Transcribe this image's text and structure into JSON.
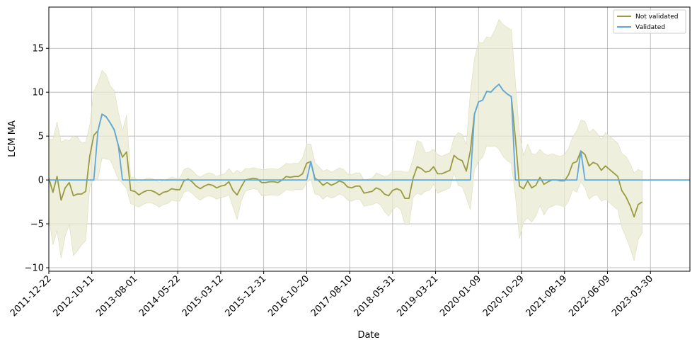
{
  "chart_data": {
    "type": "line",
    "xlabel": "Date",
    "ylabel": "LCM MA",
    "ylim": [
      -10.4,
      19.7
    ],
    "yticks": [
      -10,
      -5,
      0,
      5,
      10,
      15
    ],
    "grid": true,
    "legend_placement": "top-right",
    "x_tick_labels": [
      "2011-12-22",
      "2012-10-11",
      "2013-08-01",
      "2014-05-22",
      "2015-03-12",
      "2015-12-31",
      "2016-10-20",
      "2017-08-10",
      "2018-05-31",
      "2019-03-21",
      "2020-01-09",
      "2020-10-29",
      "2021-08-19",
      "2022-06-09",
      "2023-03-30"
    ],
    "x_range": [
      "2011-12-22",
      "2023-12-25"
    ],
    "band_color": "#e9e9d3",
    "series": [
      {
        "name": "Not validated",
        "color": "#9a9a3f",
        "points": [
          [
            "2011-12-22",
            0.2
          ],
          [
            "2012-01-19",
            -1.4
          ],
          [
            "2012-02-16",
            0.4
          ],
          [
            "2012-03-15",
            -2.3
          ],
          [
            "2012-04-12",
            -0.9
          ],
          [
            "2012-05-10",
            -0.3
          ],
          [
            "2012-06-07",
            -1.8
          ],
          [
            "2012-07-05",
            -1.6
          ],
          [
            "2012-08-02",
            -1.6
          ],
          [
            "2012-08-30",
            -1.3
          ],
          [
            "2012-09-27",
            2.7
          ],
          [
            "2012-10-25",
            5.1
          ],
          [
            "2012-11-22",
            5.6
          ],
          [
            "2012-12-20",
            7.5
          ],
          [
            "2013-01-17",
            7.2
          ],
          [
            "2013-02-14",
            6.5
          ],
          [
            "2013-03-14",
            5.7
          ],
          [
            "2013-04-11",
            3.9
          ],
          [
            "2013-05-09",
            2.6
          ],
          [
            "2013-06-06",
            3.2
          ],
          [
            "2013-07-04",
            -1.2
          ],
          [
            "2013-08-01",
            -1.3
          ],
          [
            "2013-08-29",
            -1.7
          ],
          [
            "2013-09-26",
            -1.4
          ],
          [
            "2013-10-24",
            -1.2
          ],
          [
            "2013-11-21",
            -1.2
          ],
          [
            "2013-12-19",
            -1.4
          ],
          [
            "2014-01-16",
            -1.7
          ],
          [
            "2014-02-13",
            -1.4
          ],
          [
            "2014-03-13",
            -1.3
          ],
          [
            "2014-04-10",
            -1.0
          ],
          [
            "2014-05-08",
            -1.1
          ],
          [
            "2014-06-05",
            -1.1
          ],
          [
            "2014-07-03",
            -0.1
          ],
          [
            "2014-07-31",
            0.1
          ],
          [
            "2014-08-28",
            -0.2
          ],
          [
            "2014-09-25",
            -0.7
          ],
          [
            "2014-10-23",
            -1.0
          ],
          [
            "2014-11-20",
            -0.7
          ],
          [
            "2014-12-18",
            -0.5
          ],
          [
            "2015-01-15",
            -0.6
          ],
          [
            "2015-02-12",
            -0.9
          ],
          [
            "2015-03-12",
            -0.7
          ],
          [
            "2015-04-09",
            -0.6
          ],
          [
            "2015-05-07",
            -0.2
          ],
          [
            "2015-06-04",
            -1.2
          ],
          [
            "2015-07-02",
            -1.7
          ],
          [
            "2015-07-30",
            -0.8
          ],
          [
            "2015-08-27",
            0.0
          ],
          [
            "2015-09-24",
            0.1
          ],
          [
            "2015-10-22",
            0.2
          ],
          [
            "2015-11-19",
            0.1
          ],
          [
            "2015-12-17",
            -0.3
          ],
          [
            "2016-01-14",
            -0.3
          ],
          [
            "2016-02-11",
            -0.2
          ],
          [
            "2016-03-10",
            -0.2
          ],
          [
            "2016-04-07",
            -0.3
          ],
          [
            "2016-05-05",
            0.0
          ],
          [
            "2016-06-02",
            0.4
          ],
          [
            "2016-06-30",
            0.3
          ],
          [
            "2016-07-28",
            0.4
          ],
          [
            "2016-08-25",
            0.4
          ],
          [
            "2016-09-22",
            0.7
          ],
          [
            "2016-10-20",
            1.9
          ],
          [
            "2016-11-17",
            2.1
          ],
          [
            "2016-12-15",
            0.2
          ],
          [
            "2017-01-12",
            -0.1
          ],
          [
            "2017-02-09",
            -0.6
          ],
          [
            "2017-03-09",
            -0.3
          ],
          [
            "2017-04-06",
            -0.6
          ],
          [
            "2017-05-04",
            -0.4
          ],
          [
            "2017-06-01",
            -0.1
          ],
          [
            "2017-06-29",
            -0.3
          ],
          [
            "2017-07-27",
            -0.8
          ],
          [
            "2017-08-24",
            -0.9
          ],
          [
            "2017-09-21",
            -0.7
          ],
          [
            "2017-10-19",
            -0.7
          ],
          [
            "2017-11-16",
            -1.5
          ],
          [
            "2017-12-14",
            -1.4
          ],
          [
            "2018-01-11",
            -1.3
          ],
          [
            "2018-02-08",
            -0.9
          ],
          [
            "2018-03-08",
            -1.1
          ],
          [
            "2018-04-05",
            -1.6
          ],
          [
            "2018-05-03",
            -1.8
          ],
          [
            "2018-05-31",
            -1.2
          ],
          [
            "2018-06-28",
            -1.0
          ],
          [
            "2018-07-26",
            -1.2
          ],
          [
            "2018-08-23",
            -2.1
          ],
          [
            "2018-09-20",
            -2.1
          ],
          [
            "2018-10-18",
            0.2
          ],
          [
            "2018-11-15",
            1.5
          ],
          [
            "2018-12-13",
            1.3
          ],
          [
            "2019-01-10",
            0.9
          ],
          [
            "2019-02-07",
            1.0
          ],
          [
            "2019-03-07",
            1.5
          ],
          [
            "2019-04-04",
            0.7
          ],
          [
            "2019-05-02",
            0.7
          ],
          [
            "2019-05-30",
            0.9
          ],
          [
            "2019-06-27",
            1.1
          ],
          [
            "2019-07-25",
            2.8
          ],
          [
            "2019-08-22",
            2.4
          ],
          [
            "2019-09-19",
            2.2
          ],
          [
            "2019-10-17",
            1.0
          ],
          [
            "2019-11-14",
            3.3
          ],
          [
            "2019-12-12",
            7.5
          ],
          [
            "2020-01-09",
            8.9
          ],
          [
            "2020-02-06",
            9.1
          ],
          [
            "2020-03-05",
            10.1
          ],
          [
            "2020-04-02",
            10.0
          ],
          [
            "2020-04-30",
            10.5
          ],
          [
            "2020-05-28",
            10.9
          ],
          [
            "2020-06-25",
            10.2
          ],
          [
            "2020-07-23",
            9.8
          ],
          [
            "2020-08-20",
            9.5
          ],
          [
            "2020-09-17",
            4.7
          ],
          [
            "2020-10-15",
            -0.7
          ],
          [
            "2020-11-12",
            -1.0
          ],
          [
            "2020-12-10",
            -0.1
          ],
          [
            "2021-01-07",
            -0.9
          ],
          [
            "2021-02-04",
            -0.6
          ],
          [
            "2021-03-04",
            0.3
          ],
          [
            "2021-04-01",
            -0.5
          ],
          [
            "2021-04-29",
            -0.2
          ],
          [
            "2021-05-27",
            0.0
          ],
          [
            "2021-06-24",
            0.0
          ],
          [
            "2021-07-22",
            -0.1
          ],
          [
            "2021-08-19",
            -0.1
          ],
          [
            "2021-09-16",
            0.6
          ],
          [
            "2021-10-14",
            1.9
          ],
          [
            "2021-11-11",
            2.1
          ],
          [
            "2021-12-09",
            3.3
          ],
          [
            "2022-01-06",
            2.9
          ],
          [
            "2022-02-03",
            1.6
          ],
          [
            "2022-03-03",
            2.0
          ],
          [
            "2022-03-31",
            1.8
          ],
          [
            "2022-04-28",
            1.1
          ],
          [
            "2022-05-26",
            1.6
          ],
          [
            "2022-06-23",
            1.2
          ],
          [
            "2022-07-21",
            0.8
          ],
          [
            "2022-08-18",
            0.4
          ],
          [
            "2022-09-15",
            -1.2
          ],
          [
            "2022-10-13",
            -1.9
          ],
          [
            "2022-11-10",
            -2.9
          ],
          [
            "2022-12-08",
            -4.2
          ],
          [
            "2023-01-05",
            -2.8
          ],
          [
            "2023-02-02",
            -2.5
          ]
        ],
        "band_width": [
          4.5,
          6.0,
          6.2,
          6.6,
          5.5,
          4.8,
          6.8,
          6.5,
          5.8,
          5.6,
          3.5,
          5.0,
          5.5,
          5.0,
          4.8,
          4.2,
          4.5,
          3.8,
          3.0,
          4.2,
          1.5,
          1.6,
          1.4,
          1.4,
          1.4,
          1.4,
          1.4,
          1.4,
          1.4,
          1.4,
          1.3,
          1.3,
          1.3,
          1.3,
          1.3,
          1.3,
          1.3,
          1.3,
          1.3,
          1.3,
          1.3,
          1.3,
          1.3,
          1.3,
          1.5,
          1.9,
          2.8,
          1.6,
          1.3,
          1.2,
          1.2,
          1.2,
          1.5,
          1.5,
          1.5,
          1.5,
          1.5,
          1.5,
          1.5,
          1.5,
          1.5,
          1.5,
          1.8,
          2.2,
          2.0,
          1.8,
          1.6,
          1.6,
          1.5,
          1.5,
          1.5,
          1.5,
          1.5,
          1.5,
          1.5,
          1.5,
          1.5,
          1.5,
          1.5,
          1.5,
          1.7,
          1.7,
          2.0,
          2.3,
          2.2,
          2.0,
          2.2,
          3.0,
          3.0,
          2.2,
          3.0,
          3.0,
          2.2,
          2.2,
          2.0,
          2.2,
          2.0,
          2.0,
          2.0,
          2.0,
          3.0,
          3.0,
          3.0,
          6.7,
          6.3,
          6.8,
          6.5,
          6.2,
          6.2,
          6.6,
          7.4,
          7.5,
          7.6,
          7.6,
          6.5,
          6.0,
          3.8,
          4.2,
          3.9,
          3.5,
          3.2,
          3.5,
          3.0,
          3.0,
          2.8,
          2.8,
          3.0,
          3.0,
          3.0,
          3.5,
          3.5,
          3.8,
          3.8,
          3.8,
          3.5,
          3.5,
          3.8,
          3.8,
          3.8,
          3.8,
          4.2,
          4.6,
          4.8,
          5.0,
          4.0,
          3.5
        ]
      },
      {
        "name": "Validated",
        "color": "#5fa9dd",
        "points": [
          [
            "2011-12-22",
            0
          ],
          [
            "2012-10-25",
            0
          ],
          [
            "2012-11-22",
            5.6
          ],
          [
            "2012-12-20",
            7.5
          ],
          [
            "2013-01-17",
            7.2
          ],
          [
            "2013-02-14",
            6.5
          ],
          [
            "2013-03-14",
            5.7
          ],
          [
            "2013-04-11",
            3.9
          ],
          [
            "2013-05-09",
            0
          ],
          [
            "2016-10-20",
            0
          ],
          [
            "2016-11-17",
            2.1
          ],
          [
            "2016-12-15",
            0
          ],
          [
            "2019-11-14",
            0
          ],
          [
            "2019-12-12",
            7.5
          ],
          [
            "2020-01-09",
            8.9
          ],
          [
            "2020-02-06",
            9.1
          ],
          [
            "2020-03-05",
            10.1
          ],
          [
            "2020-04-02",
            10.0
          ],
          [
            "2020-04-30",
            10.5
          ],
          [
            "2020-05-28",
            10.9
          ],
          [
            "2020-06-25",
            10.2
          ],
          [
            "2020-07-23",
            9.8
          ],
          [
            "2020-08-20",
            9.5
          ],
          [
            "2020-09-17",
            0
          ],
          [
            "2021-11-11",
            0
          ],
          [
            "2021-12-09",
            3.3
          ],
          [
            "2022-01-06",
            0
          ],
          [
            "2023-12-25",
            0
          ]
        ]
      }
    ]
  }
}
